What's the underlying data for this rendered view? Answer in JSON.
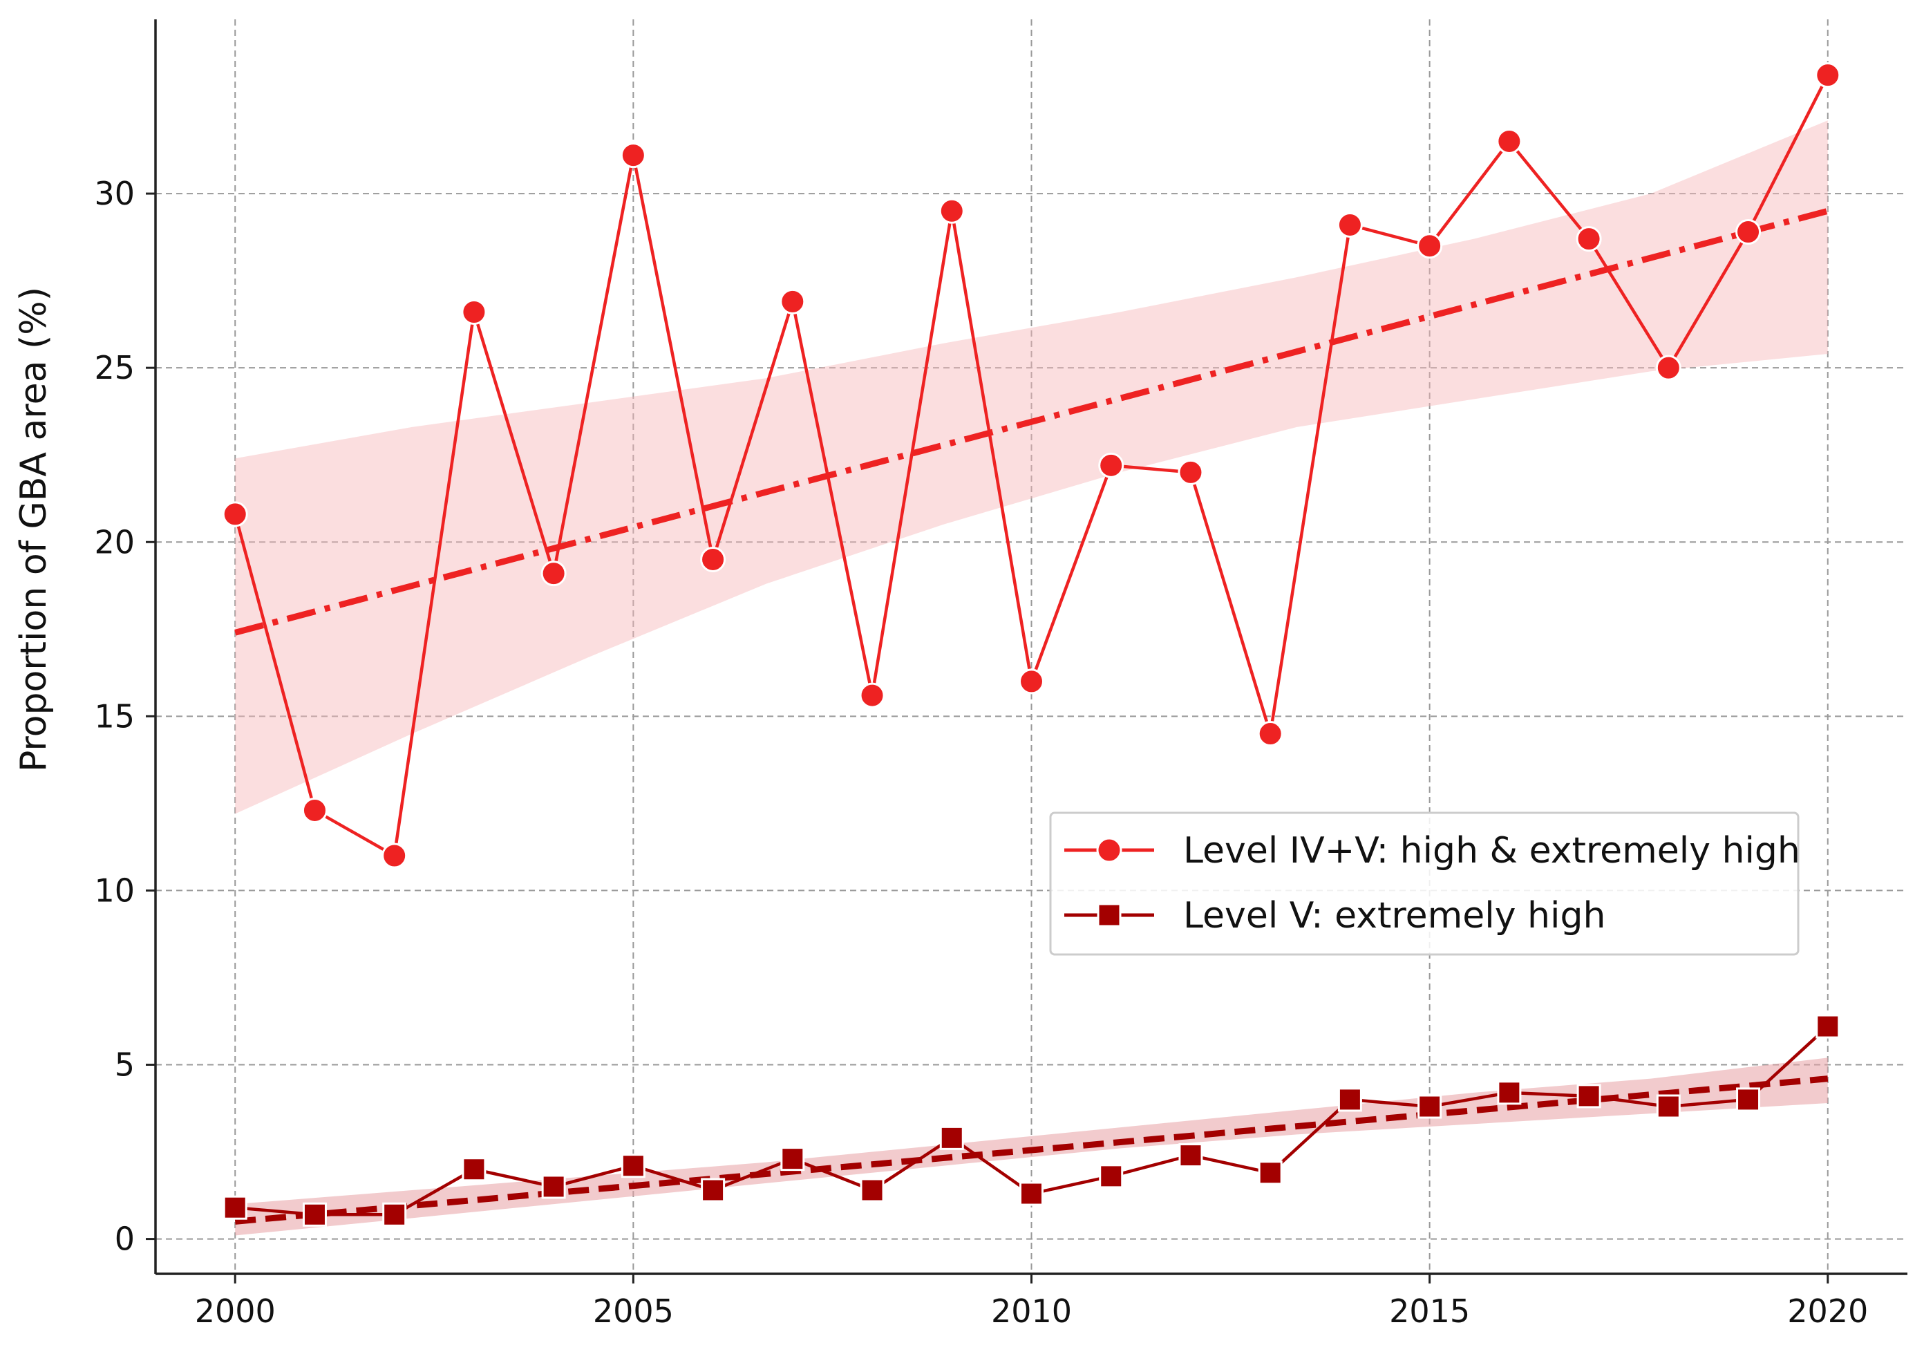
{
  "chart_data": {
    "type": "line",
    "title": "",
    "xlabel": "",
    "ylabel": "Proportion of GBA area (%)",
    "xlim": [
      1999.0,
      2021.0
    ],
    "ylim": [
      -1.0,
      35.0
    ],
    "xticks": [
      2000,
      2005,
      2010,
      2015,
      2020
    ],
    "yticks": [
      0,
      5,
      10,
      15,
      20,
      25,
      30
    ],
    "grid": true,
    "legend_position": "center-right",
    "x": [
      2000,
      2001,
      2002,
      2003,
      2004,
      2005,
      2006,
      2007,
      2008,
      2009,
      2010,
      2011,
      2012,
      2013,
      2014,
      2015,
      2016,
      2017,
      2018,
      2019,
      2020
    ],
    "series": [
      {
        "name": "Level IV+V: high & extremely high",
        "color": "#ee2222",
        "marker": "circle",
        "values": [
          20.8,
          12.3,
          11.0,
          26.6,
          19.1,
          31.1,
          19.5,
          26.9,
          15.6,
          29.5,
          16.0,
          22.2,
          22.0,
          14.5,
          29.1,
          28.5,
          31.5,
          28.7,
          25.0,
          28.9,
          33.4
        ],
        "trend": {
          "start": 17.4,
          "end": 29.5,
          "style": "dash-dot"
        },
        "band": {
          "lower": [
            12.2,
            14.5,
            16.7,
            18.8,
            20.5,
            22.0,
            23.3,
            24.1,
            24.9,
            25.4
          ],
          "upper": [
            22.4,
            23.3,
            24.0,
            24.7,
            25.7,
            26.6,
            27.6,
            28.7,
            30.0,
            32.1
          ]
        }
      },
      {
        "name": "Level V: extremely high",
        "color": "#a30000",
        "marker": "square",
        "values": [
          0.9,
          0.7,
          0.7,
          2.0,
          1.5,
          2.1,
          1.4,
          2.3,
          1.4,
          2.9,
          1.3,
          1.8,
          2.4,
          1.9,
          4.0,
          3.8,
          4.2,
          4.1,
          3.8,
          4.0,
          6.1
        ],
        "trend": {
          "start": 0.5,
          "end": 4.6,
          "style": "dashed"
        },
        "band": {
          "lower": [
            0.1,
            0.6,
            1.1,
            1.6,
            2.1,
            2.6,
            3.0,
            3.3,
            3.6,
            3.9
          ],
          "upper": [
            1.0,
            1.4,
            1.8,
            2.2,
            2.7,
            3.2,
            3.7,
            4.2,
            4.6,
            5.2
          ]
        }
      }
    ]
  }
}
